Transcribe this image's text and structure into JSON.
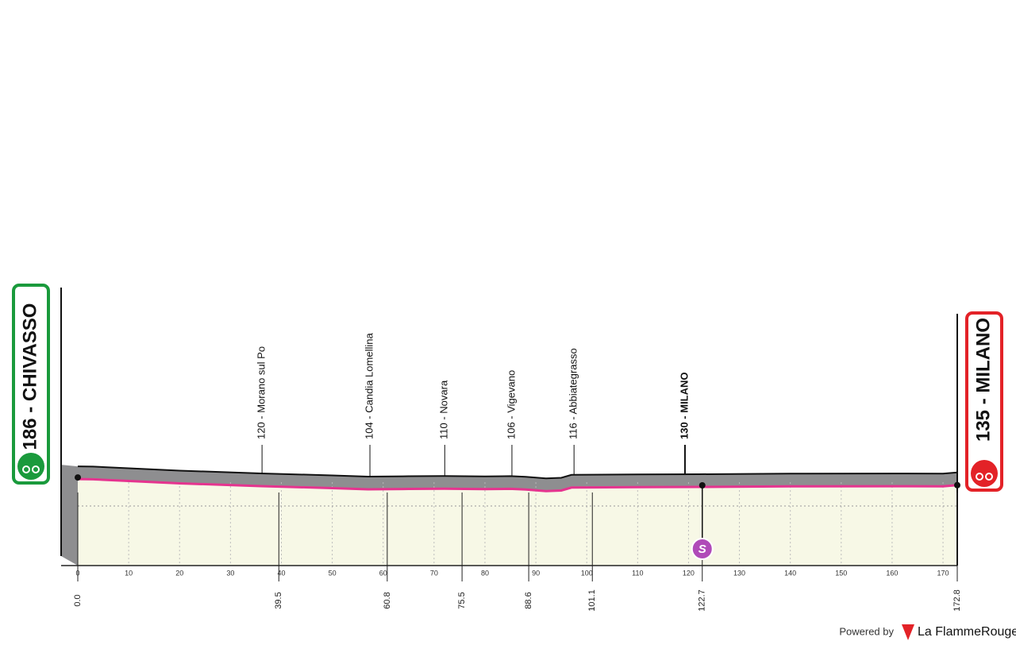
{
  "chart_data": {
    "type": "profile",
    "start_label": "186 - CHIVASSO",
    "finish_label": "135 - MILANO",
    "xlim": [
      0,
      172.8
    ],
    "xticks": [
      0,
      10,
      20,
      30,
      40,
      50,
      60,
      70,
      80,
      90,
      100,
      110,
      120,
      130,
      140,
      150,
      160,
      170
    ],
    "distance_marks": [
      {
        "value": 0,
        "label": "0.0"
      },
      39.5,
      60.8,
      75.5,
      88.6,
      101.1,
      122.7,
      172.8
    ],
    "waypoints": [
      {
        "km": 36.2,
        "label": "120 - Morano sul Po"
      },
      {
        "km": 57.4,
        "label": "104 - Candia Lomellina"
      },
      {
        "km": 72.1,
        "label": "110 - Novara"
      },
      {
        "km": 85.3,
        "label": "106 - Vigevano"
      },
      {
        "km": 97.5,
        "label": "116 - Abbiategrasso"
      },
      {
        "km": 119.3,
        "label": "130 - MILANO"
      }
    ],
    "sprint": {
      "km": 122.7,
      "label": "S"
    },
    "elevation": {
      "x": [
        0,
        3,
        10,
        20,
        36,
        50,
        57,
        65,
        72,
        80,
        85,
        88,
        92,
        95,
        97,
        110,
        122,
        140,
        160,
        170,
        172.8
      ],
      "values": [
        186,
        184,
        170,
        150,
        127,
        110,
        100,
        103,
        105,
        102,
        104,
        98,
        85,
        90,
        115,
        118,
        120,
        125,
        126,
        125,
        135
      ]
    },
    "footer": {
      "powered": "Powered by",
      "brand": "La FlammeRouge"
    }
  }
}
